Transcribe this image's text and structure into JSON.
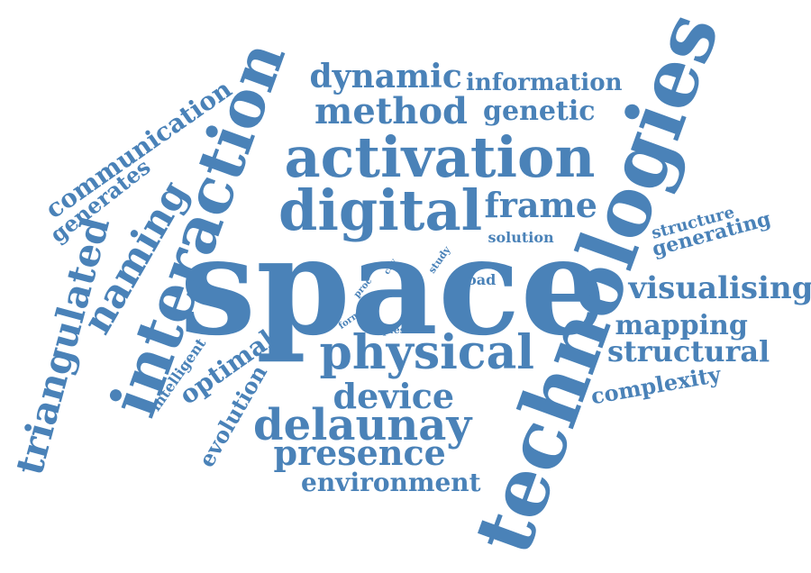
{
  "color": "#4a82b8",
  "words": [
    "space",
    "technologies",
    "interaction",
    "activation",
    "digital",
    "physical",
    "delaunay",
    "naming",
    "triangulated",
    "method",
    "dynamic",
    "genetic",
    "information",
    "frame",
    "communication",
    "generates",
    "device",
    "presence",
    "environment",
    "evolution",
    "optimal",
    "intelligent",
    "visualising",
    "mapping",
    "structural",
    "complexity",
    "structure",
    "generating",
    "solution",
    "load",
    "study",
    "city",
    "proc",
    "form",
    "quest"
  ]
}
